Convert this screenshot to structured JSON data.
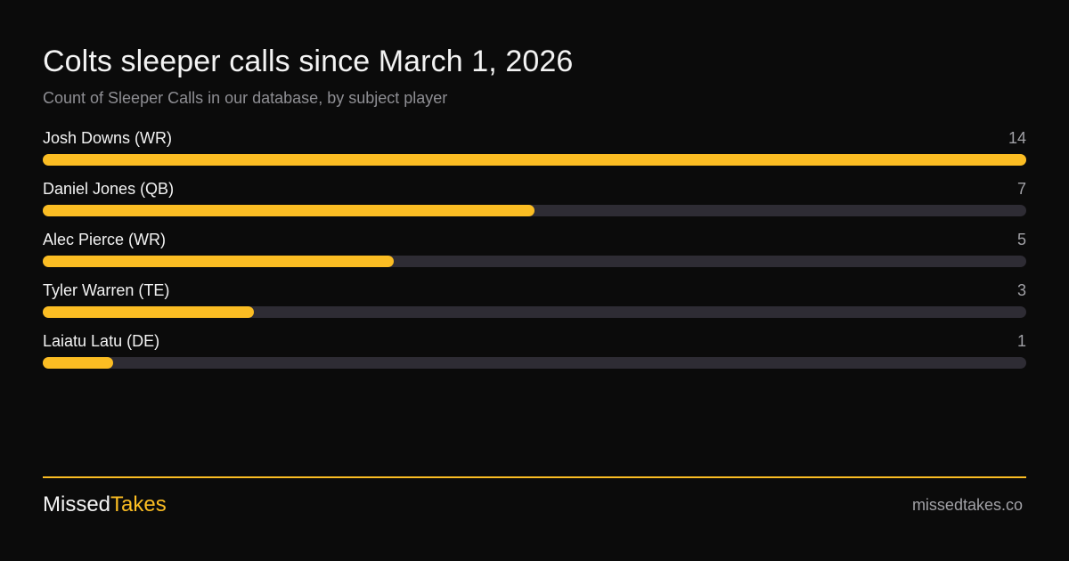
{
  "colors": {
    "background": "#0b0b0b",
    "accent": "#fbbd23",
    "track": "#2e2c34",
    "text_primary": "#f3f3f3",
    "text_secondary": "#8e8e93"
  },
  "brand": {
    "name_part1": "Missed",
    "name_part2": "Takes",
    "site": "missedtakes.co"
  },
  "chart_data": {
    "type": "bar",
    "orientation": "horizontal",
    "title": "Colts sleeper calls since March 1, 2026",
    "subtitle": "Count of Sleeper Calls in our database, by subject player",
    "xlim": [
      0,
      14
    ],
    "grid": false,
    "categories": [
      "Josh Downs (WR)",
      "Daniel Jones (QB)",
      "Alec Pierce (WR)",
      "Tyler Warren (TE)",
      "Laiatu Latu (DE)"
    ],
    "values": [
      14,
      7,
      5,
      3,
      1
    ]
  }
}
